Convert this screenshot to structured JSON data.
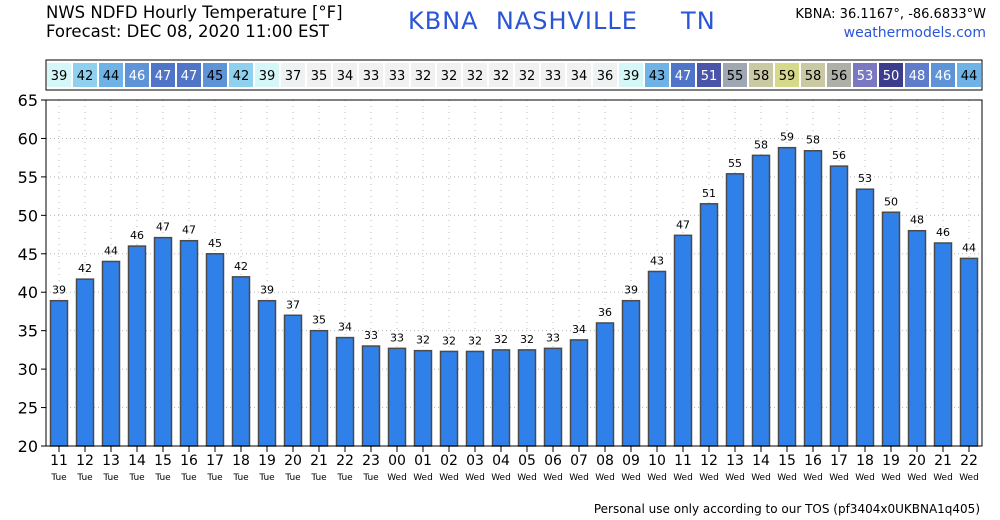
{
  "header": {
    "title_line1": "NWS NDFD Hourly Temperature [°F]",
    "title_line2": "Forecast: DEC 08, 2020 11:00 EST",
    "station_title": "KBNA  NASHVILLE     TN",
    "coords": "KBNA: 36.1167°, -86.6833°W",
    "site": "weathermodels.com"
  },
  "footer": {
    "tos": "Personal use only according to our TOS (pf3404x0UKBNA1q405)"
  },
  "colors": {
    "bar_fill": "#2f80e8",
    "bar_stroke": "#4a4a4a",
    "title_blue": "#2a55d6",
    "grid": "#b8b8b8"
  },
  "chart_data": {
    "type": "bar",
    "categories": [
      "11",
      "12",
      "13",
      "14",
      "15",
      "16",
      "17",
      "18",
      "19",
      "20",
      "21",
      "22",
      "23",
      "00",
      "01",
      "02",
      "03",
      "04",
      "05",
      "06",
      "07",
      "08",
      "09",
      "10",
      "11",
      "12",
      "13",
      "14",
      "15",
      "16",
      "17",
      "18",
      "19",
      "20",
      "21",
      "22"
    ],
    "day_labels": [
      "Tue",
      "Tue",
      "Tue",
      "Tue",
      "Tue",
      "Tue",
      "Tue",
      "Tue",
      "Tue",
      "Tue",
      "Tue",
      "Tue",
      "Tue",
      "Wed",
      "Wed",
      "Wed",
      "Wed",
      "Wed",
      "Wed",
      "Wed",
      "Wed",
      "Wed",
      "Wed",
      "Wed",
      "Wed",
      "Wed",
      "Wed",
      "Wed",
      "Wed",
      "Wed",
      "Wed",
      "Wed",
      "Wed",
      "Wed",
      "Wed",
      "Wed"
    ],
    "values": [
      38.9,
      41.7,
      44.0,
      46.0,
      47.1,
      46.7,
      45.0,
      42.0,
      38.9,
      37.0,
      35.0,
      34.1,
      33.0,
      32.7,
      32.4,
      32.3,
      32.3,
      32.5,
      32.5,
      32.7,
      33.8,
      36.0,
      38.9,
      42.7,
      47.4,
      51.5,
      55.4,
      57.8,
      58.8,
      58.4,
      56.4,
      53.4,
      50.4,
      48.0,
      46.4,
      44.4
    ],
    "labels": [
      "39",
      "42",
      "44",
      "46",
      "47",
      "47",
      "45",
      "42",
      "39",
      "37",
      "35",
      "34",
      "33",
      "33",
      "32",
      "32",
      "32",
      "32",
      "32",
      "33",
      "34",
      "36",
      "39",
      "43",
      "47",
      "51",
      "55",
      "58",
      "59",
      "58",
      "56",
      "53",
      "50",
      "48",
      "46",
      "44"
    ],
    "strip_colors": [
      "#d6f7f7",
      "#8fd0ef",
      "#6fb3e6",
      "#5f93d8",
      "#4f74c8",
      "#4f74c8",
      "#5f93d8",
      "#8fd0ef",
      "#d6f7f7",
      "#eef2f2",
      "#f1f1f1",
      "#f1f1f1",
      "#f1f1f1",
      "#f1f1f1",
      "#f1f1f1",
      "#f1f1f1",
      "#f1f1f1",
      "#f1f1f1",
      "#f1f1f1",
      "#f1f1f1",
      "#f1f1f1",
      "#eef2f2",
      "#d6f7f7",
      "#6fb3e6",
      "#4f74c8",
      "#4a55aa",
      "#9ea7b2",
      "#c9c9a4",
      "#d6d88a",
      "#c9c9a4",
      "#aeb0a8",
      "#7a78c0",
      "#3c3c8c",
      "#5f7ccb",
      "#5f93d8",
      "#6fb3e6"
    ],
    "strip_text_colors": [
      "#000000",
      "#000000",
      "#000000",
      "#ffffff",
      "#ffffff",
      "#ffffff",
      "#000000",
      "#000000",
      "#000000",
      "#000000",
      "#000000",
      "#000000",
      "#000000",
      "#000000",
      "#000000",
      "#000000",
      "#000000",
      "#000000",
      "#000000",
      "#000000",
      "#000000",
      "#000000",
      "#000000",
      "#000000",
      "#ffffff",
      "#ffffff",
      "#000000",
      "#000000",
      "#000000",
      "#000000",
      "#000000",
      "#ffffff",
      "#ffffff",
      "#ffffff",
      "#ffffff",
      "#000000"
    ],
    "yticks": [
      "20",
      "25",
      "30",
      "35",
      "40",
      "45",
      "50",
      "55",
      "60",
      "65"
    ],
    "ylim": [
      20,
      65
    ],
    "grid": true,
    "title": "",
    "xlabel": "",
    "ylabel": ""
  }
}
